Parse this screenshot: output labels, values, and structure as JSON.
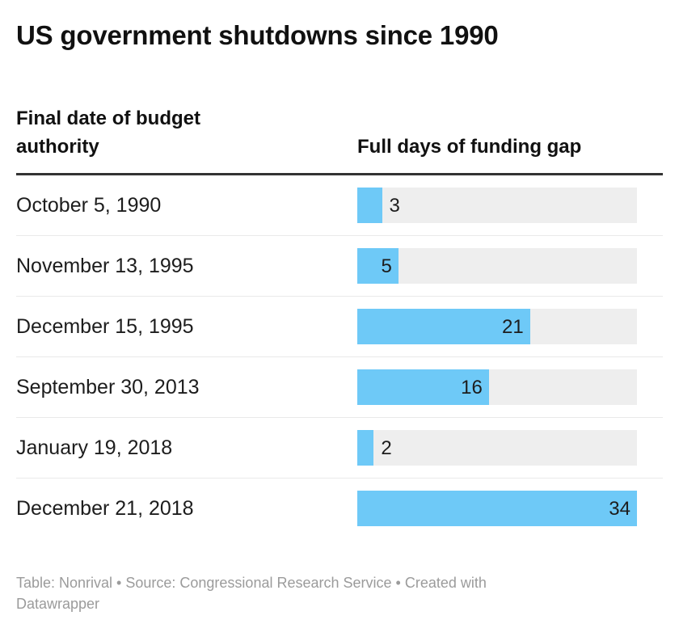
{
  "title": "US government shutdowns since 1990",
  "columns": {
    "left": "Final date of budget authority",
    "right": "Full days of funding gap"
  },
  "footer": {
    "line1": "Table: Nonrival • Source: Congressional Research Service • Created with",
    "line2": "Datawrapper"
  },
  "colors": {
    "bar": "#6ec9f7",
    "track": "#eeeeee",
    "rule": "#333333",
    "separator": "#e9e9e9",
    "text": "#1d1d1d",
    "heading": "#111111",
    "footer_text": "#9b9b9b"
  },
  "chart_data": {
    "type": "bar",
    "orientation": "horizontal",
    "title": "US government shutdowns since 1990",
    "ylabel": "Final date of budget authority",
    "xlabel": "Full days of funding gap",
    "categories": [
      "October 5, 1990",
      "November 13, 1995",
      "December 15, 1995",
      "September 30, 2013",
      "January 19, 2018",
      "December 21, 2018"
    ],
    "values": [
      3,
      5,
      21,
      16,
      2,
      34
    ],
    "xlim": [
      0,
      34
    ],
    "value_labels": true,
    "grid": false,
    "legend": "none"
  }
}
